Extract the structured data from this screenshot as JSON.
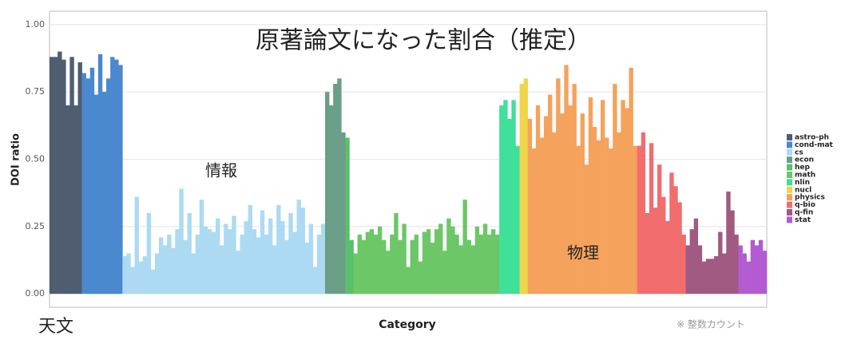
{
  "chart_data": {
    "type": "bar",
    "title": "原著論文になった割合（推定）",
    "y_label": "DOI ratio",
    "x_label": "Category",
    "annotations": [
      "情報",
      "物理",
      "天文",
      "※ 整数カウント"
    ],
    "ylim": [
      -0.05,
      1.05
    ],
    "yticks": [
      {
        "value": 0,
        "label": "0.00"
      },
      {
        "value": 0.25,
        "label": "0.25"
      },
      {
        "value": 0.5,
        "label": "0.50"
      },
      {
        "value": 0.75,
        "label": "0.75"
      },
      {
        "value": 1,
        "label": "1.00"
      }
    ],
    "grid": true,
    "legend": "right",
    "series": [
      {
        "name": "astro-ph",
        "color": "#4f5d70",
        "values": [
          0.88,
          0.88,
          0.9,
          0.87,
          0.7,
          0.88,
          0.7,
          0.86
        ]
      },
      {
        "name": "cond-mat",
        "color": "#4a88d0",
        "values": [
          0.82,
          0.8,
          0.84,
          0.74,
          0.89,
          0.75,
          0.8,
          0.88,
          0.87,
          0.85
        ]
      },
      {
        "name": "cs",
        "color": "#acdaf3",
        "values": [
          0.14,
          0.15,
          0.1,
          0.36,
          0.12,
          0.14,
          0.3,
          0.09,
          0.15,
          0.21,
          0.18,
          0.22,
          0.17,
          0.24,
          0.39,
          0.2,
          0.3,
          0.15,
          0.22,
          0.35,
          0.25,
          0.24,
          0.23,
          0.28,
          0.18,
          0.26,
          0.24,
          0.29,
          0.16,
          0.22,
          0.27,
          0.33,
          0.24,
          0.21,
          0.31,
          0.22,
          0.28,
          0.18,
          0.33,
          0.27,
          0.2,
          0.3,
          0.23,
          0.35,
          0.32,
          0.19,
          0.26,
          0.1,
          0.22,
          0.26
        ]
      },
      {
        "name": "econ",
        "color": "#6b9e87",
        "values": [
          0.75,
          0.7,
          0.78,
          0.8,
          0.6
        ]
      },
      {
        "name": "hep",
        "color": "#5bbf6c",
        "values": [
          0.58,
          0.2
        ]
      },
      {
        "name": "math",
        "color": "#6cc766",
        "values": [
          0.15,
          0.22,
          0.2,
          0.23,
          0.24,
          0.22,
          0.25,
          0.2,
          0.16,
          0.22,
          0.3,
          0.2,
          0.26,
          0.1,
          0.2,
          0.22,
          0.12,
          0.23,
          0.24,
          0.19,
          0.24,
          0.26,
          0.16,
          0.28,
          0.25,
          0.22,
          0.18,
          0.35,
          0.2,
          0.18,
          0.25,
          0.22,
          0.26,
          0.22,
          0.24,
          0.22
        ]
      },
      {
        "name": "nlin",
        "color": "#3fe09a",
        "values": [
          0.7,
          0.72,
          0.65,
          0.72,
          0.55
        ]
      },
      {
        "name": "nucl",
        "color": "#f0d44a",
        "values": [
          0.78,
          0.8
        ]
      },
      {
        "name": "physics",
        "color": "#f5a25c",
        "values": [
          0.65,
          0.54,
          0.7,
          0.58,
          0.66,
          0.74,
          0.6,
          0.8,
          0.67,
          0.85,
          0.7,
          0.78,
          0.55,
          0.67,
          0.48,
          0.73,
          0.62,
          0.57,
          0.72,
          0.58,
          0.54,
          0.78,
          0.6,
          0.72,
          0.69,
          0.84,
          0.55
        ]
      },
      {
        "name": "q-bio",
        "color": "#f26d6d",
        "values": [
          0.55,
          0.6,
          0.3,
          0.56,
          0.32,
          0.48,
          0.36,
          0.27,
          0.45,
          0.4,
          0.34,
          0.22
        ]
      },
      {
        "name": "q-fin",
        "color": "#a05a82",
        "values": [
          0.18,
          0.24,
          0.28,
          0.18,
          0.12,
          0.13,
          0.13,
          0.14,
          0.23,
          0.15,
          0.38,
          0.31,
          0.22
        ]
      },
      {
        "name": "stat",
        "color": "#b45ad2",
        "values": [
          0.18,
          0.15,
          0.12,
          0.2,
          0.18,
          0.2,
          0.16
        ]
      }
    ]
  }
}
